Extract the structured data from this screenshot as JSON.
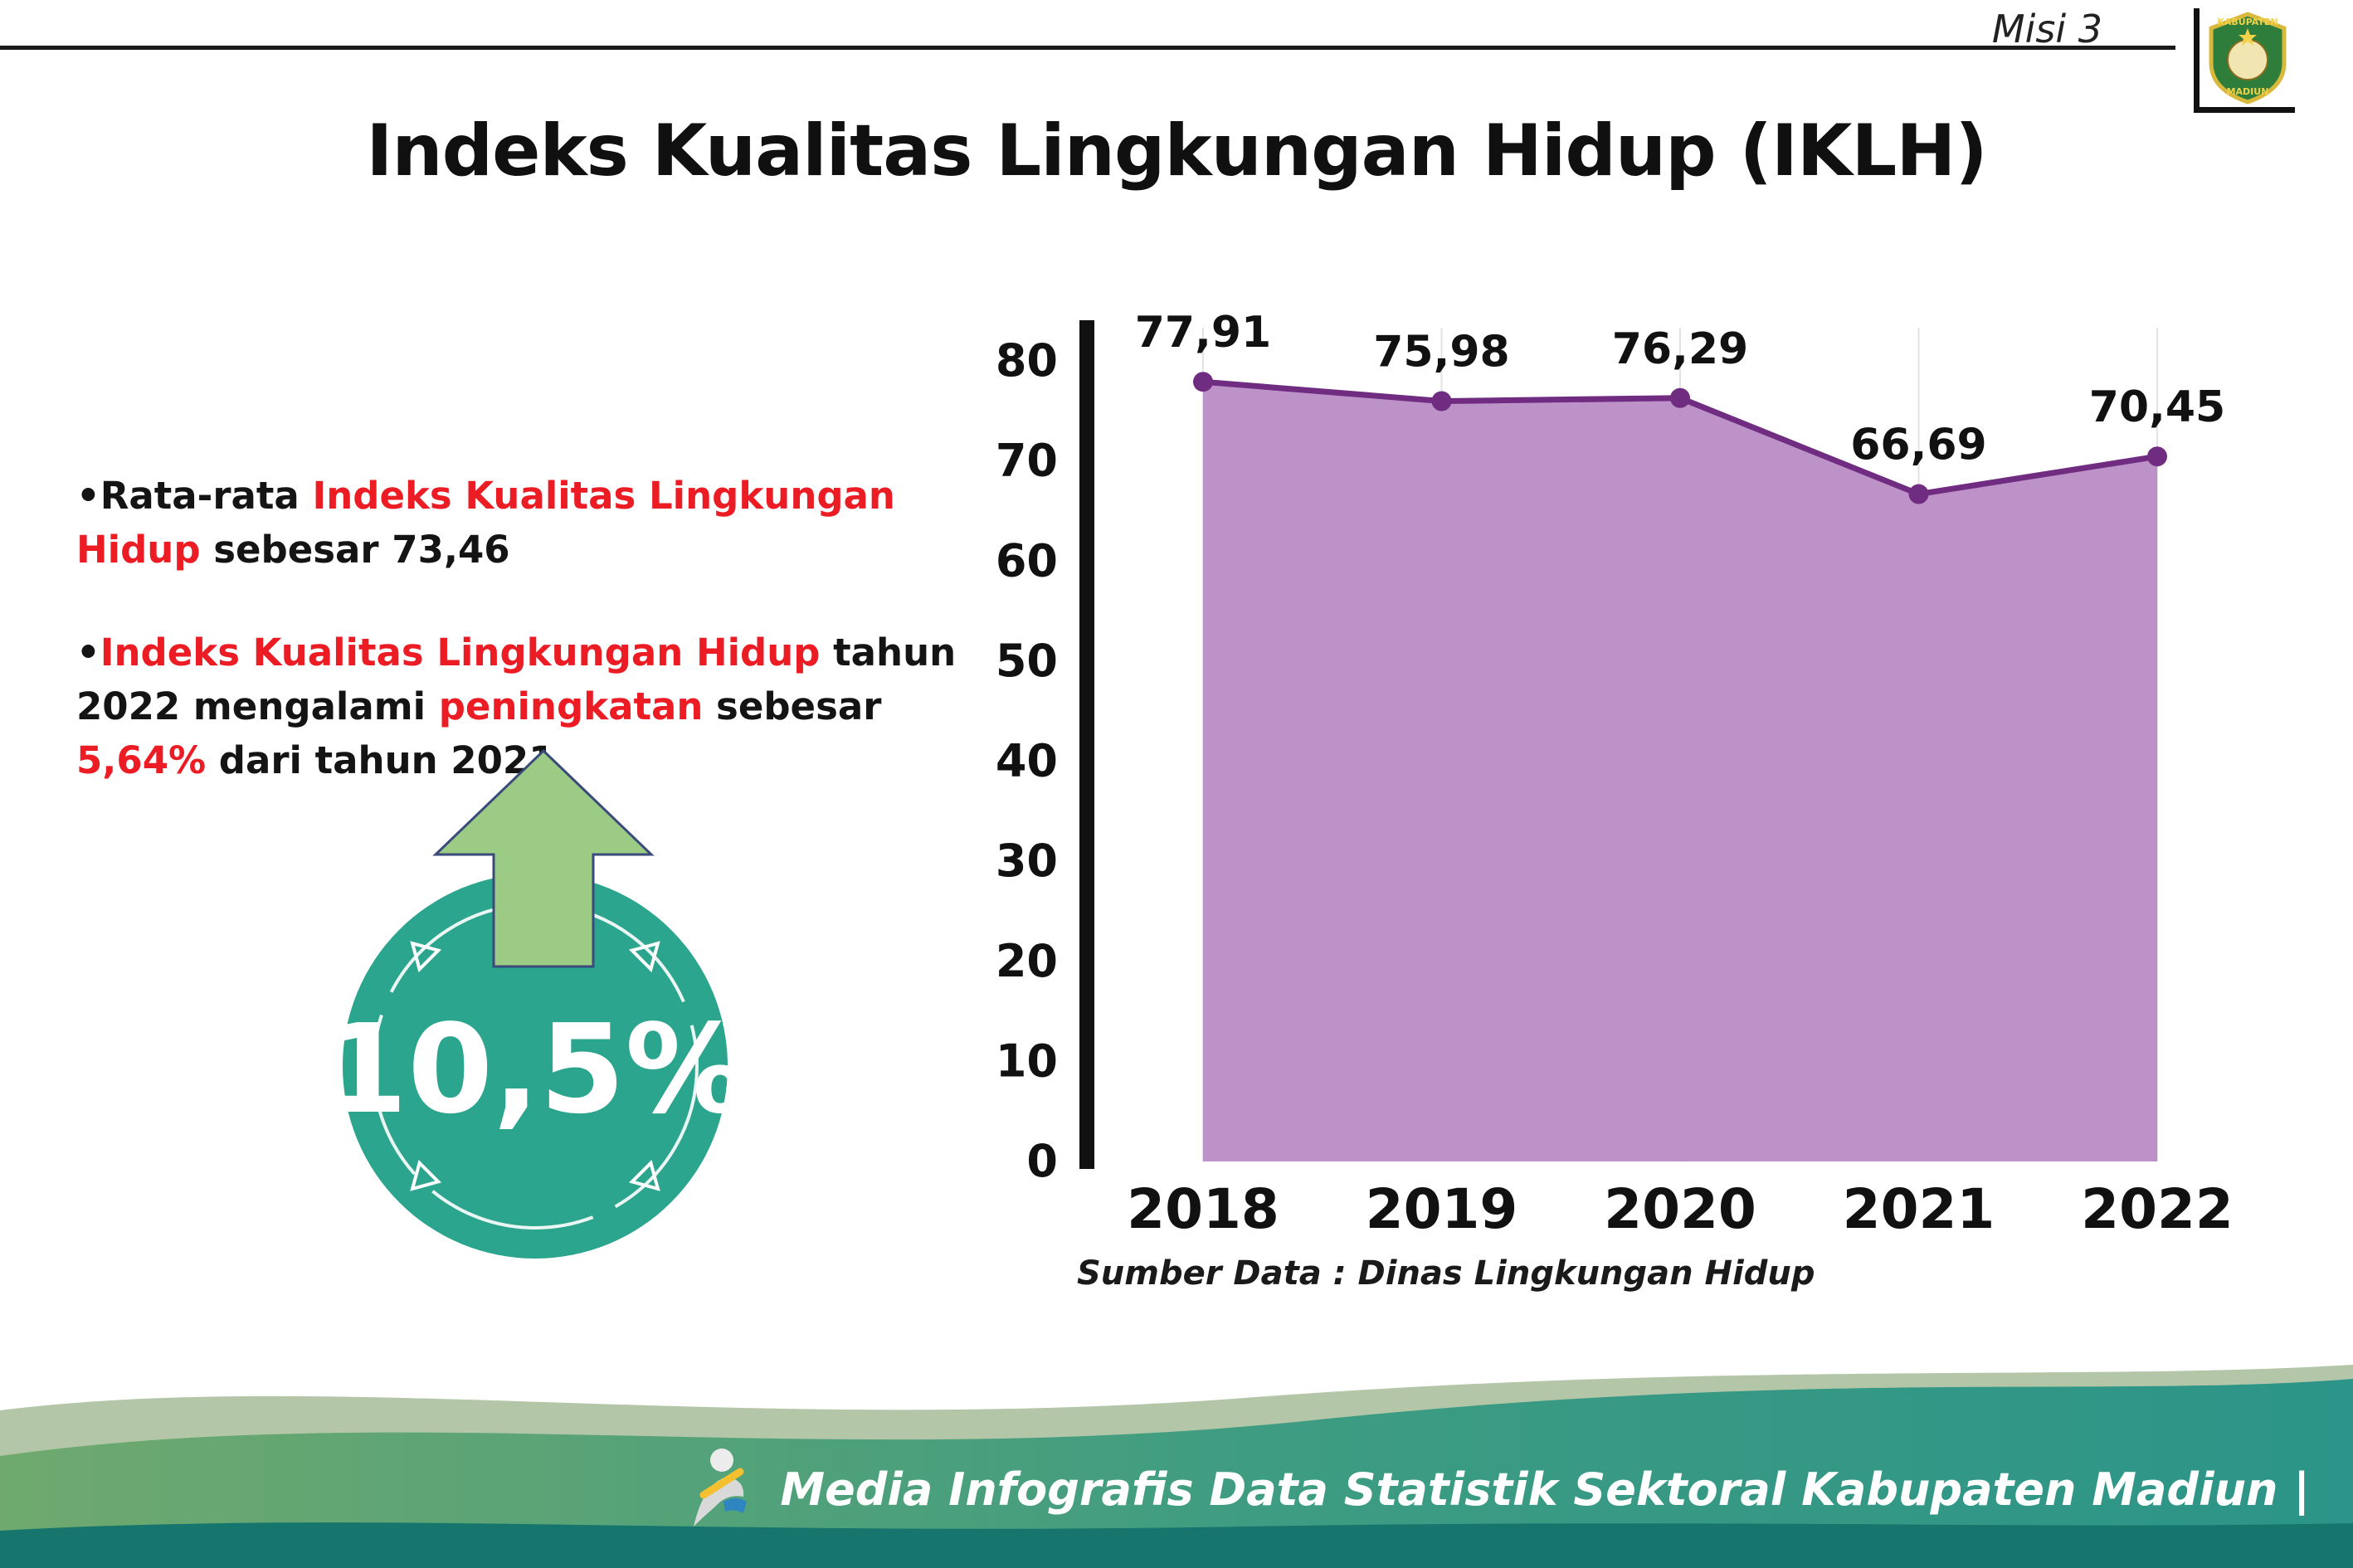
{
  "header": {
    "misi_label": "Misi 3",
    "title": "Indeks Kualitas Lingkungan Hidup (IKLH)",
    "logo": {
      "name": "kabupaten-madiun-logo",
      "top_text": "KABUPATEN",
      "bottom_text": "MADIUN"
    }
  },
  "bullets": {
    "b1": {
      "marker": "•",
      "s1": "Rata-rata ",
      "s2": "Indeks Kualitas Lingkungan Hidup",
      "s3": " sebesar 73,46"
    },
    "b2": {
      "marker": "•",
      "s1": "Indeks Kualitas Lingkungan Hidup",
      "s2": " tahun 2022 mengalami ",
      "s3": "peningkatan",
      "s4": " sebesar ",
      "s5": "5,64%",
      "s6": " dari tahun 2021"
    }
  },
  "badge": {
    "value": "10,5%"
  },
  "chart_data": {
    "type": "area",
    "title": "",
    "categories": [
      "2018",
      "2019",
      "2020",
      "2021",
      "2022"
    ],
    "values": [
      77.91,
      75.98,
      76.29,
      66.69,
      70.45
    ],
    "value_labels": [
      "77,91",
      "75,98",
      "76,29",
      "66,69",
      "70,45"
    ],
    "ylim": [
      0,
      80
    ],
    "yticks": [
      0,
      10,
      20,
      30,
      40,
      50,
      60,
      70,
      80
    ],
    "grid": "faint-vertical",
    "legend": "none",
    "fill_color": "#b98cc6",
    "line_color": "#702c80",
    "source": "Sumber Data : Dinas Lingkungan Hidup"
  },
  "footer": {
    "credit": "Media Infografis Data Statistik Sektoral Kabupaten Madiun |"
  },
  "colors": {
    "red_highlight": "#ec1c24",
    "badge_teal": "#2ba58e",
    "arrow_green": "#9ccb86",
    "footer_light_green": "#b3c6a8",
    "footer_green": "#6fa96e",
    "footer_teal": "#2c9488",
    "footer_dark_teal": "#16756c",
    "axis_black": "#111111"
  }
}
